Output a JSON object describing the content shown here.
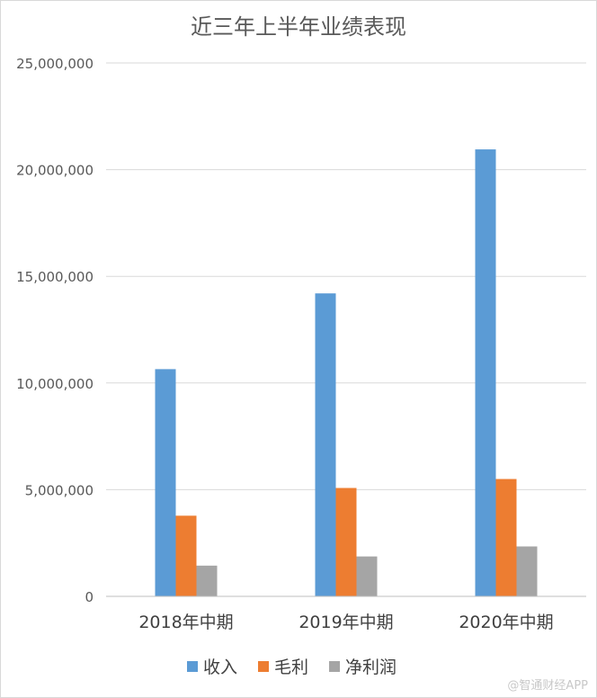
{
  "chart_data": {
    "type": "bar",
    "title": "近三年上半年业绩表现",
    "categories": [
      "2018年中期",
      "2019年中期",
      "2020年中期"
    ],
    "series": [
      {
        "name": "收入",
        "color": "#5b9bd5",
        "values": [
          10650000,
          14200000,
          20950000
        ]
      },
      {
        "name": "毛利",
        "color": "#ed7d31",
        "values": [
          3780000,
          5080000,
          5500000
        ]
      },
      {
        "name": "净利润",
        "color": "#a5a5a5",
        "values": [
          1440000,
          1870000,
          2340000
        ]
      }
    ],
    "ylim": [
      0,
      25000000
    ],
    "yticks": [
      0,
      5000000,
      10000000,
      15000000,
      20000000,
      25000000
    ],
    "ytick_labels": [
      "0",
      "5,000,000",
      "10,000,000",
      "15,000,000",
      "20,000,000",
      "25,000,000"
    ],
    "xlabel": "",
    "ylabel": "",
    "grid": true,
    "legend_position": "bottom"
  },
  "watermark": "@智通财经APP"
}
